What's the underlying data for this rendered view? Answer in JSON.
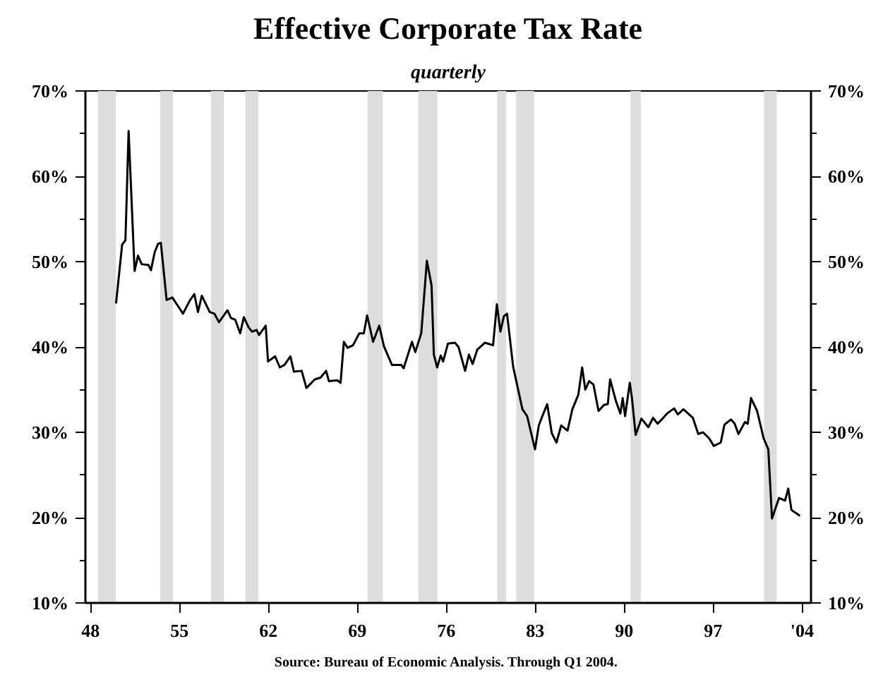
{
  "chart_data": {
    "type": "line",
    "title": "Effective Corporate Tax Rate",
    "subtitle": "quarterly",
    "annotations": [
      "Source:  Bureau of Economic Analysis. Through Q1 2004."
    ],
    "series": [
      {
        "color": "#000000",
        "x": [
          1950.01,
          1950.49,
          1950.75,
          1951.0,
          1951.47,
          1951.74,
          1952.03,
          1952.56,
          1952.76,
          1953.05,
          1953.32,
          1953.54,
          1953.99,
          1954.44,
          1955.28,
          1955.8,
          1956.17,
          1956.46,
          1956.76,
          1957.38,
          1957.75,
          1958.11,
          1958.78,
          1959.05,
          1959.39,
          1959.78,
          1960.07,
          1960.44,
          1960.71,
          1961.07,
          1961.26,
          1961.79,
          1961.97,
          1962.53,
          1962.9,
          1963.27,
          1963.73,
          1964.01,
          1964.62,
          1964.99,
          1965.65,
          1966.1,
          1966.54,
          1966.76,
          1967.42,
          1967.68,
          1967.94,
          1968.23,
          1968.66,
          1969.15,
          1969.51,
          1969.77,
          1970.24,
          1970.72,
          1971.09,
          1971.72,
          1972.45,
          1972.64,
          1973.3,
          1973.56,
          1974.03,
          1974.47,
          1974.84,
          1975.02,
          1975.28,
          1975.56,
          1975.75,
          1976.13,
          1976.68,
          1976.96,
          1977.48,
          1977.78,
          1978.07,
          1978.44,
          1979.05,
          1979.68,
          1979.98,
          1980.26,
          1980.53,
          1980.78,
          1981.26,
          1981.99,
          1982.36,
          1982.98,
          1983.28,
          1983.56,
          1983.94,
          1984.3,
          1984.67,
          1985.04,
          1985.54,
          1985.92,
          1986.39,
          1986.69,
          1986.94,
          1987.24,
          1987.58,
          1987.98,
          1988.41,
          1988.71,
          1988.89,
          1989.34,
          1989.7,
          1989.88,
          1990.07,
          1990.44,
          1990.61,
          1990.9,
          1991.35,
          1991.9,
          1992.27,
          1992.63,
          1993.01,
          1993.37,
          1993.93,
          1994.22,
          1994.66,
          1995.4,
          1995.83,
          1996.2,
          1996.68,
          1997.05,
          1997.6,
          1997.89,
          1998.4,
          1998.7,
          1998.99,
          1999.5,
          1999.72,
          1999.98,
          2000.46,
          2000.97,
          2001.34,
          2001.63,
          2002.18,
          2002.66,
          2002.91,
          2003.16,
          2003.83
        ],
        "values": [
          45.1,
          52.0,
          52.5,
          65.3,
          48.9,
          50.7,
          49.7,
          49.6,
          49.0,
          51.1,
          52.1,
          52.2,
          45.5,
          45.8,
          43.9,
          45.4,
          46.2,
          44.1,
          46.0,
          44.1,
          43.9,
          42.9,
          44.3,
          43.4,
          43.2,
          41.6,
          43.5,
          42.3,
          41.8,
          42.0,
          41.4,
          42.5,
          38.3,
          38.9,
          37.6,
          37.9,
          38.9,
          37.1,
          37.2,
          35.2,
          36.2,
          36.4,
          37.2,
          36.0,
          36.1,
          35.8,
          40.6,
          39.9,
          40.2,
          41.6,
          41.6,
          43.7,
          40.6,
          42.5,
          40.1,
          37.9,
          37.9,
          37.5,
          40.6,
          39.4,
          41.6,
          50.1,
          47.2,
          39.1,
          37.6,
          39.0,
          38.3,
          40.4,
          40.5,
          40.0,
          37.2,
          39.1,
          38.0,
          39.7,
          40.5,
          40.2,
          45.0,
          41.8,
          43.6,
          43.9,
          37.7,
          32.7,
          31.9,
          28.0,
          30.8,
          31.9,
          33.3,
          29.9,
          28.8,
          30.8,
          30.2,
          32.7,
          34.4,
          37.6,
          35.0,
          36.0,
          35.6,
          32.5,
          33.2,
          33.3,
          36.2,
          33.7,
          32.2,
          34.0,
          31.9,
          35.8,
          34.0,
          29.7,
          31.6,
          30.6,
          31.7,
          31.0,
          31.6,
          32.2,
          32.8,
          32.1,
          32.7,
          31.7,
          29.8,
          30.0,
          29.3,
          28.4,
          28.8,
          30.9,
          31.5,
          31.0,
          29.8,
          31.2,
          31.0,
          34.0,
          32.5,
          29.3,
          28.0,
          19.9,
          22.3,
          22.0,
          23.4,
          20.9,
          20.2
        ]
      }
    ],
    "xlim": [
      1947.6,
      2004.7
    ],
    "xticks": [
      {
        "value": 1948,
        "label": "48"
      },
      {
        "value": 1955,
        "label": "55"
      },
      {
        "value": 1962,
        "label": "62"
      },
      {
        "value": 1969,
        "label": "69"
      },
      {
        "value": 1976,
        "label": "76"
      },
      {
        "value": 1983,
        "label": "83"
      },
      {
        "value": 1990,
        "label": "90"
      },
      {
        "value": 1997,
        "label": "97"
      },
      {
        "value": 2004,
        "label": "'04"
      }
    ],
    "ylim": [
      10,
      70
    ],
    "yticks": [
      {
        "value": 10,
        "label": "10%"
      },
      {
        "value": 15,
        "label": null
      },
      {
        "value": 20,
        "label": "20%"
      },
      {
        "value": 25,
        "label": null
      },
      {
        "value": 30,
        "label": "30%"
      },
      {
        "value": 35,
        "label": null
      },
      {
        "value": 40,
        "label": "40%"
      },
      {
        "value": 45,
        "label": null
      },
      {
        "value": 50,
        "label": "50%"
      },
      {
        "value": 55,
        "label": null
      },
      {
        "value": 60,
        "label": "60%"
      },
      {
        "value": 65,
        "label": null
      },
      {
        "value": 70,
        "label": "70%"
      }
    ],
    "y2lim": [
      10,
      70
    ],
    "y2ticks": [
      {
        "value": 10,
        "label": "10%"
      },
      {
        "value": 15,
        "label": null
      },
      {
        "value": 20,
        "label": "20%"
      },
      {
        "value": 25,
        "label": null
      },
      {
        "value": 30,
        "label": "30%"
      },
      {
        "value": 35,
        "label": null
      },
      {
        "value": 40,
        "label": "40%"
      },
      {
        "value": 45,
        "label": null
      },
      {
        "value": 50,
        "label": "50%"
      },
      {
        "value": 55,
        "label": null
      },
      {
        "value": 60,
        "label": "60%"
      },
      {
        "value": 65,
        "label": null
      },
      {
        "value": 70,
        "label": "70%"
      }
    ],
    "bands": [
      {
        "axis": "x",
        "from": 1948.6,
        "to": 1950.0,
        "color": "#dddddd"
      },
      {
        "axis": "x",
        "from": 1953.5,
        "to": 1954.5,
        "color": "#dddddd"
      },
      {
        "axis": "x",
        "from": 1957.5,
        "to": 1958.5,
        "color": "#dddddd"
      },
      {
        "axis": "x",
        "from": 1960.2,
        "to": 1961.2,
        "color": "#dddddd"
      },
      {
        "axis": "x",
        "from": 1969.8,
        "to": 1971.0,
        "color": "#dddddd"
      },
      {
        "axis": "x",
        "from": 1973.8,
        "to": 1975.3,
        "color": "#dddddd"
      },
      {
        "axis": "x",
        "from": 1980.0,
        "to": 1980.7,
        "color": "#dddddd"
      },
      {
        "axis": "x",
        "from": 1981.5,
        "to": 1982.9,
        "color": "#dddddd"
      },
      {
        "axis": "x",
        "from": 1990.5,
        "to": 1991.3,
        "color": "#dddddd"
      },
      {
        "axis": "x",
        "from": 2001.0,
        "to": 2002.0,
        "color": "#dddddd"
      }
    ],
    "grid": false,
    "line_style": "solid",
    "marker": "none"
  }
}
